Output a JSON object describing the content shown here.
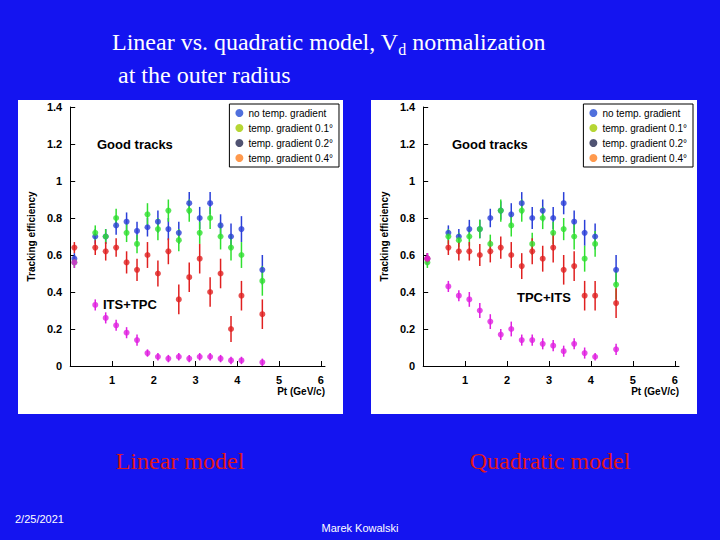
{
  "slide": {
    "title": [
      [
        {
          "text": "Linear vs. quadratic model, V"
        },
        {
          "text": "d",
          "sub": true
        },
        {
          "text": " normalization"
        }
      ],
      [
        {
          "text": "at the outer radius"
        }
      ]
    ],
    "date": "2/25/2021",
    "author": "Marek Kowalski"
  },
  "chart_data": [
    {
      "type": "scatter",
      "caption": "Linear model",
      "xlabel": "Pt (GeV/c)",
      "ylabel": "Tracking efficiency",
      "annotations": [
        "Good tracks",
        "ITS+TPC"
      ],
      "xlim": [
        0,
        6.1
      ],
      "xticks": [
        1,
        2,
        3,
        4,
        5,
        6
      ],
      "ylim": [
        0,
        1.4
      ],
      "yticks": [
        0,
        0.2,
        0.4,
        0.6,
        0.8,
        1,
        1.2,
        1.4
      ],
      "grid": false,
      "legend": "top-right",
      "marker": "circle",
      "x": [
        0.1,
        0.6,
        0.85,
        1.1,
        1.35,
        1.6,
        1.85,
        2.1,
        2.35,
        2.6,
        2.85,
        3.1,
        3.35,
        3.6,
        3.85,
        4.1,
        4.6
      ],
      "series": [
        {
          "name": "no temp. gradient",
          "color": "#2a3fd8",
          "values": [
            0.58,
            0.7,
            0.7,
            0.76,
            0.78,
            0.73,
            0.75,
            0.78,
            0.74,
            0.72,
            0.88,
            0.8,
            0.88,
            0.76,
            0.7,
            0.74,
            0.52
          ],
          "errors": [
            0.03,
            0.04,
            0.04,
            0.05,
            0.05,
            0.05,
            0.05,
            0.06,
            0.06,
            0.06,
            0.06,
            0.06,
            0.06,
            0.06,
            0.07,
            0.07,
            0.08
          ]
        },
        {
          "name": "temp. gradient 0.1°",
          "color": "#30e030",
          "values": [
            0.56,
            0.72,
            0.7,
            0.8,
            0.72,
            0.66,
            0.82,
            0.74,
            0.84,
            0.68,
            0.84,
            0.72,
            0.8,
            0.7,
            0.64,
            0.6,
            0.46
          ],
          "errors": [
            0.03,
            0.04,
            0.04,
            0.05,
            0.05,
            0.05,
            0.06,
            0.06,
            0.06,
            0.06,
            0.06,
            0.06,
            0.06,
            0.07,
            0.07,
            0.07,
            0.08
          ]
        },
        {
          "name": "temp. gradient 0.2°",
          "color": "#e02020",
          "values": [
            0.64,
            0.64,
            0.62,
            0.64,
            0.56,
            0.52,
            0.6,
            0.5,
            0.62,
            0.36,
            0.48,
            0.58,
            0.4,
            0.5,
            0.2,
            0.38,
            0.28
          ],
          "errors": [
            0.03,
            0.04,
            0.05,
            0.05,
            0.06,
            0.06,
            0.07,
            0.07,
            0.07,
            0.08,
            0.08,
            0.08,
            0.08,
            0.08,
            0.07,
            0.08,
            0.08
          ]
        },
        {
          "name": "temp. gradient 0.4°",
          "color": "#e020e0",
          "values": [
            0.56,
            0.33,
            0.26,
            0.22,
            0.18,
            0.14,
            0.07,
            0.05,
            0.04,
            0.05,
            0.04,
            0.05,
            0.05,
            0.04,
            0.03,
            0.03,
            0.02
          ],
          "errors": [
            0.03,
            0.03,
            0.03,
            0.03,
            0.03,
            0.03,
            0.02,
            0.02,
            0.02,
            0.02,
            0.02,
            0.02,
            0.02,
            0.02,
            0.02,
            0.02,
            0.02
          ]
        }
      ]
    },
    {
      "type": "scatter",
      "caption": "Quadratic model",
      "xlabel": "Pt (GeV/c)",
      "ylabel": "Tracking efficiency",
      "annotations": [
        "Good tracks",
        "TPC+ITS"
      ],
      "xlim": [
        0,
        6.1
      ],
      "xticks": [
        1,
        2,
        3,
        4,
        5,
        6
      ],
      "ylim": [
        0,
        1.4
      ],
      "yticks": [
        0,
        0.2,
        0.4,
        0.6,
        0.8,
        1,
        1.2,
        1.4
      ],
      "grid": false,
      "legend": "top-right",
      "marker": "circle",
      "x": [
        0.1,
        0.6,
        0.85,
        1.1,
        1.35,
        1.6,
        1.85,
        2.1,
        2.35,
        2.6,
        2.85,
        3.1,
        3.35,
        3.6,
        3.85,
        4.1,
        4.6
      ],
      "series": [
        {
          "name": "no temp. gradient",
          "color": "#2a3fd8",
          "values": [
            0.58,
            0.72,
            0.7,
            0.74,
            0.74,
            0.8,
            0.84,
            0.82,
            0.88,
            0.8,
            0.84,
            0.8,
            0.88,
            0.78,
            0.72,
            0.7,
            0.52
          ],
          "errors": [
            0.03,
            0.04,
            0.04,
            0.05,
            0.05,
            0.05,
            0.05,
            0.06,
            0.06,
            0.06,
            0.06,
            0.06,
            0.06,
            0.06,
            0.07,
            0.07,
            0.08
          ]
        },
        {
          "name": "temp. gradient 0.1°",
          "color": "#30e030",
          "values": [
            0.56,
            0.7,
            0.68,
            0.7,
            0.74,
            0.66,
            0.84,
            0.76,
            0.84,
            0.66,
            0.8,
            0.72,
            0.74,
            0.7,
            0.58,
            0.66,
            0.44
          ],
          "errors": [
            0.03,
            0.04,
            0.04,
            0.05,
            0.05,
            0.05,
            0.06,
            0.06,
            0.06,
            0.06,
            0.06,
            0.06,
            0.06,
            0.07,
            0.07,
            0.07,
            0.08
          ]
        },
        {
          "name": "temp. gradient 0.2°",
          "color": "#e02020",
          "values": [
            0.58,
            0.64,
            0.62,
            0.62,
            0.6,
            0.62,
            0.64,
            0.6,
            0.54,
            0.62,
            0.58,
            0.64,
            0.52,
            0.54,
            0.38,
            0.38,
            0.34
          ],
          "errors": [
            0.03,
            0.04,
            0.05,
            0.05,
            0.06,
            0.06,
            0.06,
            0.07,
            0.07,
            0.07,
            0.07,
            0.08,
            0.08,
            0.08,
            0.08,
            0.08,
            0.08
          ]
        },
        {
          "name": "temp. gradient 0.4°",
          "color": "#e020e0",
          "values": [
            0.58,
            0.43,
            0.38,
            0.36,
            0.3,
            0.24,
            0.17,
            0.2,
            0.14,
            0.14,
            0.12,
            0.11,
            0.08,
            0.12,
            0.07,
            0.05,
            0.09
          ],
          "errors": [
            0.03,
            0.03,
            0.03,
            0.04,
            0.04,
            0.04,
            0.03,
            0.04,
            0.03,
            0.03,
            0.03,
            0.03,
            0.03,
            0.03,
            0.03,
            0.02,
            0.03
          ]
        }
      ]
    }
  ]
}
